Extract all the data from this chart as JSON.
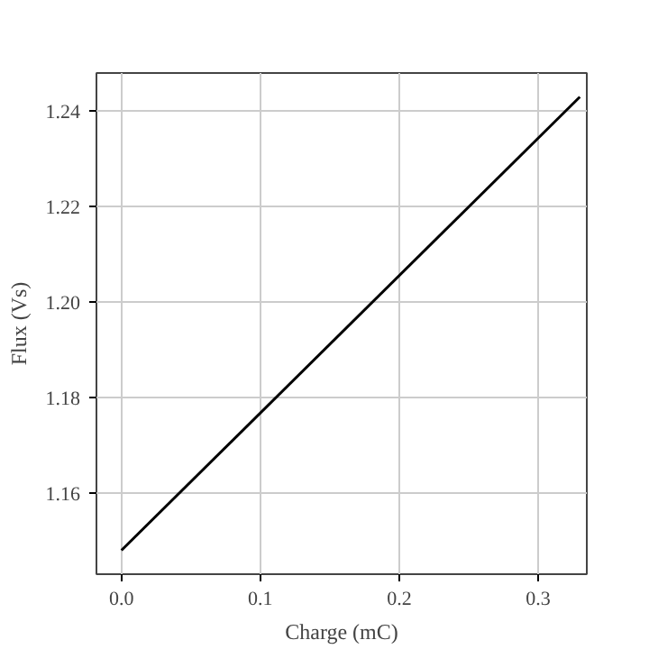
{
  "chart_data": {
    "type": "line",
    "xlabel": "Charge (mC)",
    "ylabel": "Flux (Vs)",
    "x": [
      0,
      0.33
    ],
    "series": [
      {
        "color": "#000000",
        "values": [
          1.148,
          1.243
        ]
      }
    ],
    "xlim": [
      -0.018,
      0.335
    ],
    "ylim": [
      1.143,
      1.248
    ],
    "xticks": [
      {
        "value": 0,
        "label": "0.0"
      },
      0.1,
      0.2,
      0.3
    ],
    "yticks": [
      1.16,
      1.18,
      {
        "value": 1.2,
        "label": "1.20"
      },
      1.22,
      1.24
    ],
    "grid": true,
    "marker": "none",
    "line_style": "solid"
  }
}
